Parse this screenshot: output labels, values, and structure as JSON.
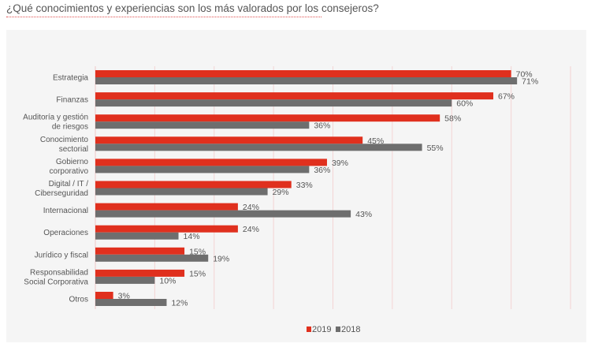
{
  "title": "¿Qué conocimientos y experiencias son los más valorados por los consejeros?",
  "chart_data": {
    "type": "bar",
    "orientation": "horizontal",
    "title": "¿Qué conocimientos y experiencias son los más valorados por los consejeros?",
    "xlabel": "",
    "ylabel": "",
    "xlim": [
      0,
      80
    ],
    "grid": true,
    "legend_position": "bottom",
    "value_suffix": "%",
    "categories": [
      [
        "Estrategia"
      ],
      [
        "Finanzas"
      ],
      [
        "Auditoría y gestión",
        "de riesgos"
      ],
      [
        "Conocimiento",
        "sectorial"
      ],
      [
        "Gobierno",
        "corporativo"
      ],
      [
        "Digital / IT /",
        "Ciberseguridad"
      ],
      [
        "Internacional"
      ],
      [
        "Operaciones"
      ],
      [
        "Jurídico y fiscal"
      ],
      [
        "Responsabilidad",
        "Social Corporativa"
      ],
      [
        "Otros"
      ]
    ],
    "series": [
      {
        "name": "2019",
        "color": "#e0301e",
        "values": [
          70,
          67,
          58,
          45,
          39,
          33,
          24,
          24,
          15,
          15,
          3
        ]
      },
      {
        "name": "2018",
        "color": "#6e6e6e",
        "values": [
          71,
          60,
          36,
          55,
          36,
          29,
          43,
          14,
          19,
          10,
          12
        ]
      }
    ]
  }
}
